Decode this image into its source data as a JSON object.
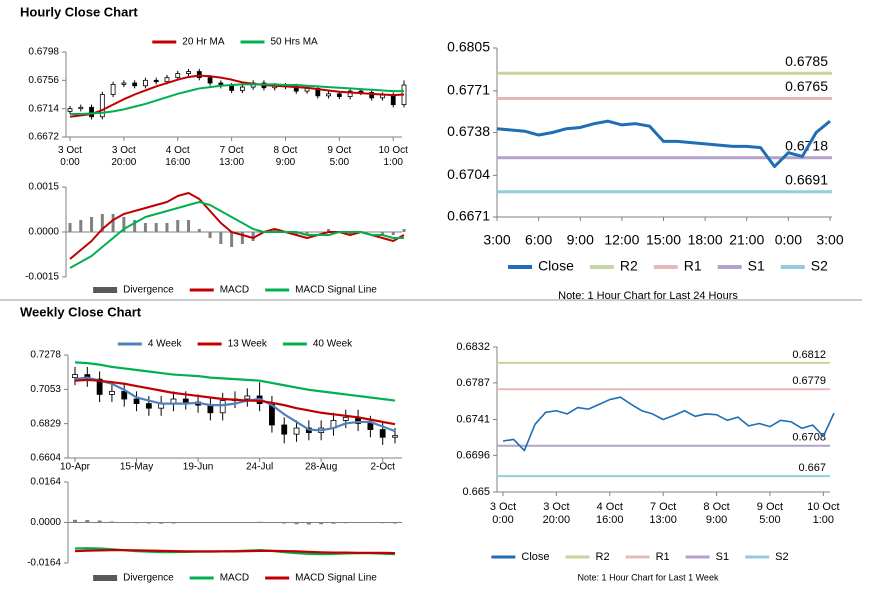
{
  "headings": [
    "Hourly Close Chart",
    "Weekly Close Chart"
  ],
  "chart_data": [
    {
      "type": "candlestick",
      "categories": [
        "3 Oct 0:00",
        null,
        null,
        null,
        null,
        "3 Oct 20:00",
        null,
        null,
        null,
        null,
        "4 Oct 16:00",
        null,
        null,
        null,
        null,
        "7 Oct 13:00",
        null,
        null,
        null,
        null,
        "8 Oct 9:00",
        null,
        null,
        null,
        null,
        "9 Oct 5:00",
        null,
        null,
        null,
        null,
        "10 Oct 1:00",
        null
      ],
      "candles": {
        "open": [
          0.671,
          0.6714,
          0.6716,
          0.6702,
          0.6735,
          0.675,
          0.6752,
          0.6748,
          0.6756,
          0.6754,
          0.676,
          0.6766,
          0.6769,
          0.676,
          0.6752,
          0.6748,
          0.6741,
          0.6746,
          0.6752,
          0.6745,
          0.6748,
          0.6747,
          0.674,
          0.6744,
          0.6733,
          0.6736,
          0.6732,
          0.674,
          0.6738,
          0.673,
          0.6734,
          0.672
        ],
        "high": [
          0.6718,
          0.672,
          0.672,
          0.6739,
          0.6754,
          0.6756,
          0.6756,
          0.676,
          0.676,
          0.6764,
          0.677,
          0.6773,
          0.6773,
          0.6764,
          0.6756,
          0.6752,
          0.675,
          0.6756,
          0.6756,
          0.6752,
          0.6752,
          0.6751,
          0.6748,
          0.6748,
          0.674,
          0.674,
          0.6744,
          0.6744,
          0.6742,
          0.6738,
          0.6738,
          0.6756
        ],
        "low": [
          0.6706,
          0.671,
          0.6698,
          0.6698,
          0.6731,
          0.6746,
          0.6744,
          0.6744,
          0.675,
          0.675,
          0.6756,
          0.6762,
          0.6756,
          0.6748,
          0.6744,
          0.6737,
          0.6737,
          0.6742,
          0.6741,
          0.6741,
          0.6743,
          0.6736,
          0.6736,
          0.6729,
          0.6729,
          0.6728,
          0.6728,
          0.6734,
          0.6726,
          0.6726,
          0.6716,
          0.6716
        ],
        "close": [
          0.6714,
          0.6716,
          0.6702,
          0.6735,
          0.675,
          0.6752,
          0.6748,
          0.6756,
          0.6754,
          0.676,
          0.6766,
          0.6769,
          0.676,
          0.6752,
          0.6748,
          0.6741,
          0.6746,
          0.6752,
          0.6745,
          0.6748,
          0.6747,
          0.674,
          0.6744,
          0.6733,
          0.6736,
          0.6732,
          0.674,
          0.6738,
          0.673,
          0.6734,
          0.672,
          0.6749
        ]
      },
      "series": [
        {
          "name": "20 Hr MA",
          "color": "#c00000",
          "values": [
            0.6702,
            0.6704,
            0.6706,
            0.6712,
            0.672,
            0.6728,
            0.6735,
            0.6741,
            0.6747,
            0.6752,
            0.6757,
            0.6761,
            0.6763,
            0.6762,
            0.676,
            0.6757,
            0.6753,
            0.6751,
            0.6749,
            0.6748,
            0.6747,
            0.6746,
            0.6745,
            0.6743,
            0.6741,
            0.6739,
            0.6738,
            0.6737,
            0.6736,
            0.6735,
            0.6734,
            0.6735
          ]
        },
        {
          "name": "50 Hrs MA",
          "color": "#00b050",
          "values": [
            0.6706,
            0.6706,
            0.6707,
            0.6708,
            0.671,
            0.6713,
            0.6717,
            0.6721,
            0.6726,
            0.6731,
            0.6736,
            0.674,
            0.6744,
            0.6746,
            0.6748,
            0.6749,
            0.675,
            0.675,
            0.675,
            0.675,
            0.6749,
            0.6749,
            0.6748,
            0.6747,
            0.6746,
            0.6745,
            0.6744,
            0.6743,
            0.6742,
            0.6741,
            0.674,
            0.674
          ]
        }
      ],
      "ylim": [
        0.6672,
        0.6798
      ],
      "yticks": [
        0.6672,
        0.6714,
        0.6756,
        0.6798
      ],
      "legend": "top"
    },
    {
      "type": "macd",
      "series": [
        {
          "name": "Divergence",
          "kind": "bar",
          "color": "#808080",
          "values": [
            0.0003,
            0.0004,
            0.0005,
            0.0006,
            0.0006,
            0.0005,
            0.0004,
            0.0003,
            0.0003,
            0.0003,
            0.0004,
            0.0004,
            0.0001,
            -0.0002,
            -0.0004,
            -0.0005,
            -0.0004,
            -0.0003,
            0,
            0.0001,
            0,
            -0.0001,
            -0.0001,
            0,
            0.0001,
            0,
            -0.0001,
            0,
            0,
            -0.0001,
            -0.0001,
            0.0001
          ]
        },
        {
          "name": "MACD",
          "kind": "line",
          "color": "#c00000",
          "values": [
            -0.0009,
            -0.0006,
            -0.0003,
            0.0001,
            0.0004,
            0.0006,
            0.0007,
            0.0008,
            0.0009,
            0.001,
            0.0012,
            0.0013,
            0.0011,
            0.0007,
            0.0003,
            0,
            -0.0001,
            -0.0002,
            0,
            0.0001,
            0,
            -0.0001,
            -0.0002,
            -0.0001,
            0,
            0,
            -0.0001,
            0,
            -0.0001,
            -0.0002,
            -0.0003,
            -0.0001
          ]
        },
        {
          "name": "MACD Signal Line",
          "kind": "line",
          "color": "#00b050",
          "values": [
            -0.0012,
            -0.001,
            -0.0008,
            -0.0005,
            -0.0002,
            0.0001,
            0.0003,
            0.0005,
            0.0006,
            0.0007,
            0.0008,
            0.0009,
            0.001,
            0.0009,
            0.0007,
            0.0005,
            0.0003,
            0.0001,
            0,
            0,
            0,
            0,
            -0.0001,
            -0.0001,
            -0.0001,
            0,
            0,
            0,
            -0.0001,
            -0.0001,
            -0.0002,
            -0.0002
          ]
        }
      ],
      "ylim": [
        -0.0015,
        0.0015
      ],
      "yticks": [
        -0.0015,
        {
          "value": 0,
          "label": "0.0000"
        },
        0.0015
      ],
      "legend": "bottom"
    },
    {
      "type": "levels",
      "categories": [
        "3:00",
        null,
        null,
        "6:00",
        null,
        null,
        "9:00",
        null,
        null,
        "12:00",
        null,
        null,
        "15:00",
        null,
        null,
        "18:00",
        null,
        null,
        "21:00",
        null,
        null,
        "0:00",
        null,
        null,
        "3:00"
      ],
      "series": [
        {
          "name": "Close",
          "color": "#1f6db5",
          "values": [
            0.6741,
            0.674,
            0.6739,
            0.6736,
            0.6738,
            0.6741,
            0.6742,
            0.6745,
            0.6747,
            0.6744,
            0.6745,
            0.6743,
            0.6731,
            0.6731,
            0.673,
            0.6729,
            0.6728,
            0.6727,
            0.6727,
            0.6726,
            0.6711,
            0.6722,
            0.6719,
            0.6738,
            0.6747
          ]
        },
        {
          "name": "R2",
          "color": "#c3d69b",
          "value": 0.6785
        },
        {
          "name": "R1",
          "color": "#e6b9b8",
          "value": 0.6765
        },
        {
          "name": "S1",
          "color": "#b3a2c7",
          "value": 0.6718
        },
        {
          "name": "S2",
          "color": "#93cddd",
          "value": 0.6691
        }
      ],
      "ylim": [
        0.6671,
        0.6805
      ],
      "yticks": [
        0.6671,
        0.6704,
        0.6738,
        0.6771,
        0.6805
      ],
      "legend": "bottom",
      "note": "Note: 1 Hour Chart for Last 24 Hours"
    },
    {
      "type": "candlestick",
      "categories": [
        "10-Apr",
        null,
        null,
        null,
        null,
        "15-May",
        null,
        null,
        null,
        null,
        "19-Jun",
        null,
        null,
        null,
        null,
        "24-Jul",
        null,
        null,
        null,
        null,
        "28-Aug",
        null,
        null,
        null,
        null,
        "2-Oct",
        null
      ],
      "candles": {
        "open": [
          0.713,
          0.715,
          0.712,
          0.702,
          0.704,
          0.699,
          0.696,
          0.693,
          0.696,
          0.699,
          0.697,
          0.695,
          0.69,
          0.698,
          0.699,
          0.701,
          0.696,
          0.682,
          0.676,
          0.68,
          0.677,
          0.68,
          0.685,
          0.687,
          0.683,
          0.679,
          0.674
        ],
        "high": [
          0.72,
          0.72,
          0.717,
          0.709,
          0.709,
          0.704,
          0.701,
          0.701,
          0.704,
          0.704,
          0.702,
          0.7,
          0.703,
          0.704,
          0.706,
          0.71,
          0.701,
          0.687,
          0.685,
          0.685,
          0.685,
          0.69,
          0.692,
          0.692,
          0.688,
          0.684,
          0.68
        ],
        "low": [
          0.708,
          0.707,
          0.697,
          0.697,
          0.694,
          0.691,
          0.688,
          0.688,
          0.691,
          0.692,
          0.69,
          0.685,
          0.685,
          0.693,
          0.694,
          0.691,
          0.677,
          0.67,
          0.671,
          0.672,
          0.672,
          0.675,
          0.68,
          0.678,
          0.674,
          0.669,
          0.67
        ],
        "close": [
          0.715,
          0.712,
          0.702,
          0.704,
          0.699,
          0.696,
          0.693,
          0.696,
          0.699,
          0.697,
          0.695,
          0.69,
          0.698,
          0.699,
          0.701,
          0.696,
          0.682,
          0.676,
          0.68,
          0.677,
          0.68,
          0.685,
          0.687,
          0.683,
          0.679,
          0.674,
          0.675
        ]
      },
      "series": [
        {
          "name": "4 Week",
          "color": "#4f81bd",
          "values": [
            0.712,
            0.713,
            0.711,
            0.709,
            0.705,
            0.7,
            0.698,
            0.696,
            0.696,
            0.696,
            0.6965,
            0.695,
            0.695,
            0.696,
            0.698,
            0.699,
            0.695,
            0.689,
            0.684,
            0.679,
            0.6785,
            0.68,
            0.683,
            0.684,
            0.684,
            0.681,
            0.678
          ]
        },
        {
          "name": "13 Week",
          "color": "#c00000",
          "values": [
            0.711,
            0.7115,
            0.711,
            0.71,
            0.709,
            0.7075,
            0.706,
            0.7045,
            0.703,
            0.702,
            0.701,
            0.7,
            0.699,
            0.6985,
            0.698,
            0.6978,
            0.6965,
            0.695,
            0.693,
            0.6915,
            0.69,
            0.689,
            0.688,
            0.687,
            0.6855,
            0.684,
            0.6825
          ]
        },
        {
          "name": "40 Week",
          "color": "#00b050",
          "values": [
            0.723,
            0.7225,
            0.7215,
            0.72,
            0.719,
            0.718,
            0.717,
            0.716,
            0.715,
            0.7145,
            0.714,
            0.713,
            0.7125,
            0.712,
            0.7115,
            0.711,
            0.7095,
            0.708,
            0.7065,
            0.705,
            0.704,
            0.703,
            0.702,
            0.701,
            0.7,
            0.699,
            0.698
          ]
        }
      ],
      "ylim": [
        0.6604,
        0.7278
      ],
      "yticks": [
        0.6604,
        0.6829,
        0.7053,
        0.7278
      ],
      "legend": "top"
    },
    {
      "type": "macd",
      "series": [
        {
          "name": "Divergence",
          "kind": "bar",
          "color": "#808080",
          "values": [
            0.0011,
            0.001,
            0.0008,
            0.0004,
            0,
            -0.0003,
            -0.0004,
            -0.0005,
            -0.0004,
            -0.0002,
            -0.0001,
            -0.0001,
            0,
            0.0001,
            0.0002,
            0.0003,
            0,
            -0.0004,
            -0.0007,
            -0.0008,
            -0.0007,
            -0.0005,
            -0.0003,
            -0.0001,
            -0.0001,
            -0.0003,
            -0.0004
          ]
        },
        {
          "name": "MACD",
          "kind": "line",
          "color": "#00b050",
          "values": [
            -0.0105,
            -0.0104,
            -0.0105,
            -0.0108,
            -0.0112,
            -0.0116,
            -0.0118,
            -0.012,
            -0.012,
            -0.0119,
            -0.0118,
            -0.0118,
            -0.0117,
            -0.0116,
            -0.0114,
            -0.0112,
            -0.0115,
            -0.012,
            -0.0124,
            -0.0127,
            -0.0128,
            -0.0127,
            -0.0125,
            -0.0124,
            -0.0124,
            -0.0126,
            -0.0128
          ]
        },
        {
          "name": "MACD Signal Line",
          "kind": "line",
          "color": "#c00000",
          "values": [
            -0.0116,
            -0.0114,
            -0.0113,
            -0.0112,
            -0.0112,
            -0.0113,
            -0.0114,
            -0.0115,
            -0.0116,
            -0.0117,
            -0.0117,
            -0.0117,
            -0.0117,
            -0.0117,
            -0.0116,
            -0.0115,
            -0.0115,
            -0.0116,
            -0.0117,
            -0.0119,
            -0.0121,
            -0.0122,
            -0.0122,
            -0.0123,
            -0.0123,
            -0.0123,
            -0.0124
          ]
        }
      ],
      "ylim": [
        -0.0164,
        0.0164
      ],
      "yticks": [
        -0.0164,
        {
          "value": 0,
          "label": "0.0000"
        },
        0.0164
      ],
      "legend": "bottom"
    },
    {
      "type": "levels",
      "categories": [
        "3 Oct 0:00",
        null,
        null,
        null,
        null,
        "3 Oct 20:00",
        null,
        null,
        null,
        null,
        "4 Oct 16:00",
        null,
        null,
        null,
        null,
        "7 Oct 13:00",
        null,
        null,
        null,
        null,
        "8 Oct 9:00",
        null,
        null,
        null,
        null,
        "9 Oct 5:00",
        null,
        null,
        null,
        null,
        "10 Oct 1:00",
        null
      ],
      "series": [
        {
          "name": "Close",
          "color": "#1f6db5",
          "values": [
            0.6714,
            0.6716,
            0.6702,
            0.6735,
            0.675,
            0.6752,
            0.6748,
            0.6756,
            0.6754,
            0.676,
            0.6766,
            0.6769,
            0.676,
            0.6752,
            0.6748,
            0.6741,
            0.6746,
            0.6752,
            0.6745,
            0.6748,
            0.6747,
            0.674,
            0.6744,
            0.6733,
            0.6736,
            0.6732,
            0.674,
            0.6738,
            0.673,
            0.6734,
            0.672,
            0.6749
          ]
        },
        {
          "name": "R2",
          "color": "#c3d69b",
          "value": 0.6812
        },
        {
          "name": "R1",
          "color": "#e6b9b8",
          "value": 0.6779
        },
        {
          "name": "S1",
          "color": "#b3a2c7",
          "value": 0.6708
        },
        {
          "name": "S2",
          "color": "#93cddd",
          "value": 0.667
        }
      ],
      "ylim": [
        0.665,
        0.6832
      ],
      "yticks": [
        0.665,
        0.6696,
        0.6741,
        0.6787,
        0.6832
      ],
      "legend": "bottom",
      "note": "Note: 1 Hour Chart for Last 1 Week"
    }
  ]
}
